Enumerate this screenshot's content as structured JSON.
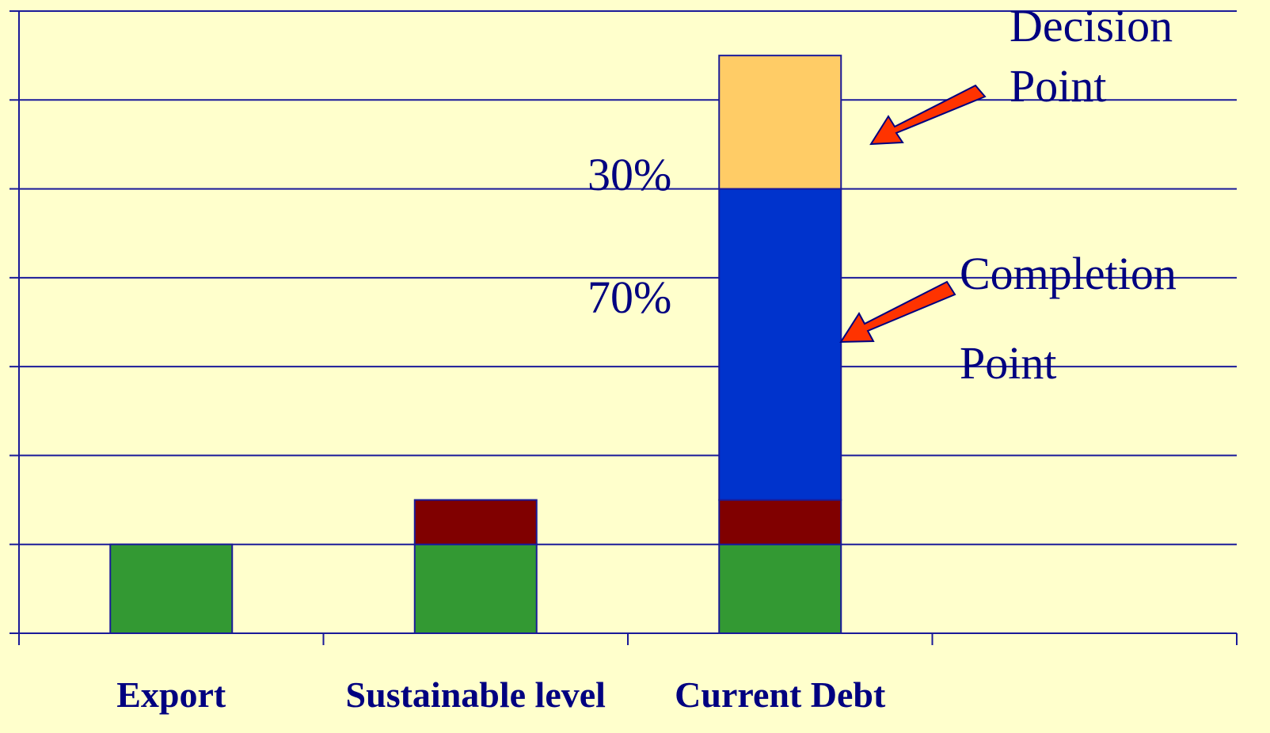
{
  "chart_data": {
    "type": "stacked_bar",
    "categories": [
      "Export",
      "Sustainable level",
      "Current Debt",
      null
    ],
    "series": [
      {
        "color": "#339933",
        "values": [
          1,
          1,
          1,
          null
        ]
      },
      {
        "color": "#800000",
        "values": [
          0,
          0.5,
          0.5,
          null
        ]
      },
      {
        "color": "#0033cc",
        "values": [
          0,
          0,
          3.5,
          null
        ]
      },
      {
        "color": "#ffcc66",
        "values": [
          0,
          0,
          1.5,
          null
        ]
      }
    ],
    "ylim": [
      0,
      7
    ],
    "yticks": [
      0,
      1,
      2,
      3,
      4,
      5,
      6,
      7
    ],
    "grid": true,
    "annotations": [
      {
        "text": "30%"
      },
      {
        "text": "70%"
      },
      {
        "lines": [
          "Decision",
          "Point"
        ]
      },
      {
        "lines": [
          "Completion",
          "Point"
        ]
      }
    ]
  }
}
